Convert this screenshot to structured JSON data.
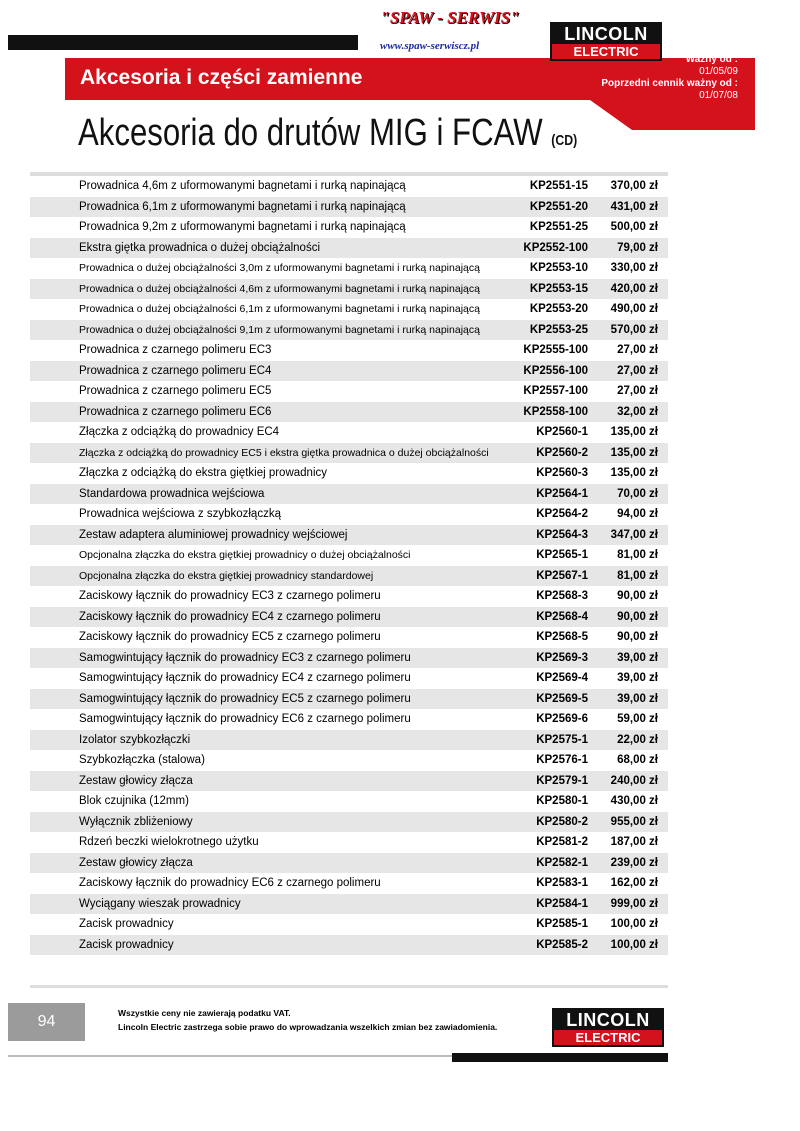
{
  "header": {
    "brand": "\"SPAW - SERWIS\"",
    "url": "www.spaw-serwiscz.pl",
    "logo_top": "LINCOLN",
    "logo_bottom": "ELECTRIC",
    "section": "Akcesoria i części zamienne",
    "valid_from_label": "Ważny od :",
    "valid_from": "01/05/09",
    "previous_label": "Poprzedni cennik ważny od :",
    "previous": "01/07/08"
  },
  "title": {
    "main": "Akcesoria do drutów MIG i FCAW",
    "suffix": "(CD)"
  },
  "table": {
    "rows": [
      [
        "Prowadnica 4,6m z uformowanymi bagnetami i rurką napinającą",
        "KP2551-15",
        "370,00 zł"
      ],
      [
        "Prowadnica 6,1m z uformowanymi bagnetami i rurką napinającą",
        "KP2551-20",
        "431,00 zł"
      ],
      [
        "Prowadnica 9,2m z uformowanymi bagnetami i rurką napinającą",
        "KP2551-25",
        "500,00 zł"
      ],
      [
        "Ekstra giętka prowadnica o dużej obciążalności",
        "KP2552-100",
        "79,00 zł"
      ],
      [
        "Prowadnica o dużej obciążalności 3,0m z uformowanymi bagnetami i rurką napinającą",
        "KP2553-10",
        "330,00 zł"
      ],
      [
        "Prowadnica o dużej obciążalności 4,6m z uformowanymi bagnetami i rurką napinającą",
        "KP2553-15",
        "420,00 zł"
      ],
      [
        "Prowadnica o dużej obciążalności 6,1m z uformowanymi bagnetami i rurką napinającą",
        "KP2553-20",
        "490,00 zł"
      ],
      [
        "Prowadnica o dużej obciążalności 9,1m z uformowanymi bagnetami i rurką napinającą",
        "KP2553-25",
        "570,00 zł"
      ],
      [
        "Prowadnica z czarnego polimeru EC3",
        "KP2555-100",
        "27,00 zł"
      ],
      [
        "Prowadnica z czarnego polimeru EC4",
        "KP2556-100",
        "27,00 zł"
      ],
      [
        "Prowadnica z czarnego polimeru EC5",
        "KP2557-100",
        "27,00 zł"
      ],
      [
        "Prowadnica z czarnego polimeru EC6",
        "KP2558-100",
        "32,00 zł"
      ],
      [
        "Złączka z odciążką do prowadnicy EC4",
        "KP2560-1",
        "135,00 zł"
      ],
      [
        "Złączka z odciążką do prowadnicy EC5 i ekstra giętka prowadnica o dużej obciążalności",
        "KP2560-2",
        "135,00 zł"
      ],
      [
        "Złączka z odciążką do ekstra giętkiej prowadnicy",
        "KP2560-3",
        "135,00 zł"
      ],
      [
        "Standardowa prowadnica wejściowa",
        "KP2564-1",
        "70,00 zł"
      ],
      [
        "Prowadnica wejściowa z szybkozłączką",
        "KP2564-2",
        "94,00 zł"
      ],
      [
        "Zestaw adaptera aluminiowej prowadnicy wejściowej",
        "KP2564-3",
        "347,00 zł"
      ],
      [
        "Opcjonalna złączka do ekstra giętkiej prowadnicy o dużej obciążalności",
        "KP2565-1",
        "81,00 zł"
      ],
      [
        "Opcjonalna złączka do ekstra giętkiej prowadnicy standardowej",
        "KP2567-1",
        "81,00 zł"
      ],
      [
        "Zaciskowy łącznik do prowadnicy EC3 z czarnego polimeru",
        "KP2568-3",
        "90,00 zł"
      ],
      [
        "Zaciskowy łącznik do prowadnicy EC4 z czarnego polimeru",
        "KP2568-4",
        "90,00 zł"
      ],
      [
        "Zaciskowy łącznik do prowadnicy EC5 z czarnego polimeru",
        "KP2568-5",
        "90,00 zł"
      ],
      [
        "Samogwintujący łącznik do prowadnicy EC3 z czarnego polimeru",
        "KP2569-3",
        "39,00 zł"
      ],
      [
        "Samogwintujący łącznik do prowadnicy EC4 z czarnego polimeru",
        "KP2569-4",
        "39,00 zł"
      ],
      [
        "Samogwintujący łącznik do prowadnicy EC5 z czarnego polimeru",
        "KP2569-5",
        "39,00 zł"
      ],
      [
        "Samogwintujący łącznik do prowadnicy EC6 z czarnego polimeru",
        "KP2569-6",
        "59,00 zł"
      ],
      [
        "Izolator szybkozłączki",
        "KP2575-1",
        "22,00 zł"
      ],
      [
        "Szybkozłączka (stalowa)",
        "KP2576-1",
        "68,00 zł"
      ],
      [
        "Zestaw głowicy złącza",
        "KP2579-1",
        "240,00 zł"
      ],
      [
        "Blok czujnika (12mm)",
        "KP2580-1",
        "430,00 zł"
      ],
      [
        "Wyłącznik zbliżeniowy",
        "KP2580-2",
        "955,00 zł"
      ],
      [
        "Rdzeń beczki wielokrotnego użytku",
        "KP2581-2",
        "187,00 zł"
      ],
      [
        "Zestaw głowicy złącza",
        "KP2582-1",
        "239,00 zł"
      ],
      [
        "Zaciskowy łącznik do prowadnicy EC6 z czarnego polimeru",
        "KP2583-1",
        "162,00 zł"
      ],
      [
        "Wyciągany wieszak prowadnicy",
        "KP2584-1",
        "999,00 zł"
      ],
      [
        "Zacisk prowadnicy",
        "KP2585-1",
        "100,00 zł"
      ],
      [
        "Zacisk prowadnicy",
        "KP2585-2",
        "100,00 zł"
      ]
    ]
  },
  "footer": {
    "page": "94",
    "note1": "Wszystkie ceny nie zawierają podatku VAT.",
    "note2": "Lincoln Electric zastrzega sobie prawo do wprowadzania wszelkich zmian bez zawiadomienia.",
    "logo_top": "LINCOLN",
    "logo_bottom": "ELECTRIC"
  }
}
